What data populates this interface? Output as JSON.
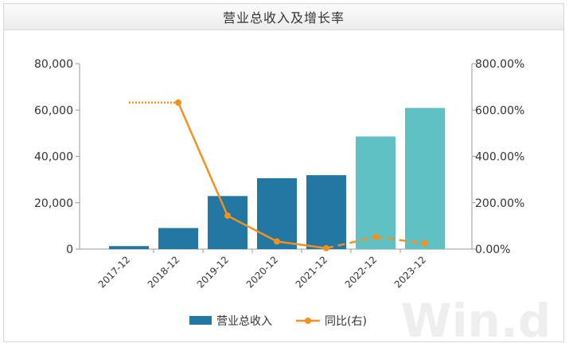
{
  "chart_data": {
    "type": "bar",
    "title": "营业总收入及增长率",
    "categories": [
      "2017-12",
      "2018-12",
      "2019-12",
      "2020-12",
      "2021-12",
      "2022-12",
      "2023-12"
    ],
    "series": [
      {
        "name": "营业总收入",
        "type": "bar",
        "axis": "left",
        "values": [
          1300,
          9100,
          22900,
          30600,
          31900,
          48600,
          60900
        ],
        "estimated_from": "2022-12",
        "colors": {
          "actual": "#2378a3",
          "estimate": "#5fc1c1"
        }
      },
      {
        "name": "同比(右)",
        "type": "line",
        "axis": "right",
        "unit": "%",
        "values": [
          632,
          632,
          144,
          33,
          4,
          52,
          25
        ],
        "color": "#f5901f",
        "dotted_until": "2018-12",
        "dashed_from": "2021-12"
      }
    ],
    "y_left": {
      "min": 0,
      "max": 80000,
      "ticks": [
        "0",
        "20,000",
        "40,000",
        "60,000",
        "80,000"
      ]
    },
    "y_right": {
      "min": 0,
      "max": 800,
      "ticks": [
        "0.00%",
        "200.00%",
        "400.00%",
        "600.00%",
        "800.00%"
      ]
    },
    "legend": {
      "placement": "bottom",
      "items": [
        "营业总收入",
        "同比(右)"
      ]
    },
    "grid": false
  },
  "watermark": "Win.d"
}
